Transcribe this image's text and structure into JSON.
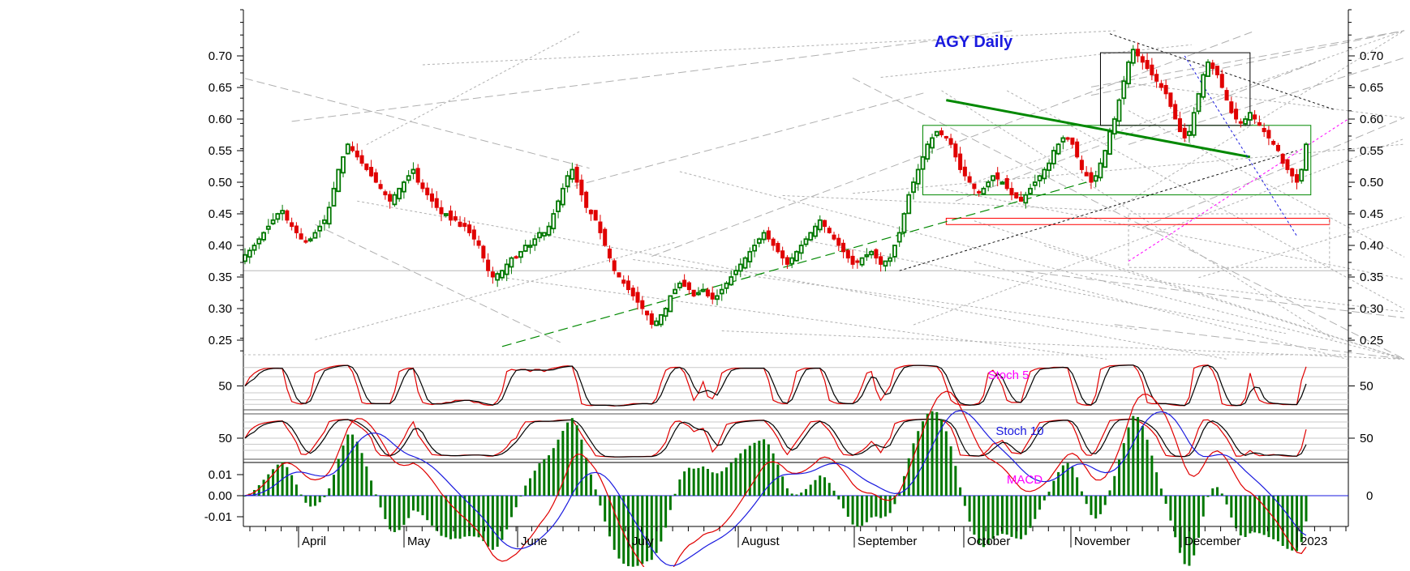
{
  "chart_data": {
    "type": "candlestick",
    "title": "AGY Daily",
    "colors": {
      "up": "#007700",
      "down": "#e00000",
      "title": "#1a1adf",
      "pink": "#ff00ff",
      "blue": "#1a1adf"
    },
    "price_axis": {
      "ticks": [
        0.25,
        0.3,
        0.35,
        0.4,
        0.45,
        0.5,
        0.55,
        0.6,
        0.65,
        0.7
      ],
      "tick_labels": [
        "0.25",
        "0.30",
        "0.35",
        "0.40",
        "0.45",
        "0.50",
        "0.55",
        "0.60",
        "0.65",
        "0.70"
      ],
      "ylim": [
        0.225,
        0.735
      ]
    },
    "months": [
      "April",
      "May",
      "June",
      "July",
      "August",
      "September",
      "October",
      "November",
      "December",
      "2023"
    ],
    "close": [
      0.385,
      0.392,
      0.4,
      0.41,
      0.42,
      0.43,
      0.44,
      0.45,
      0.455,
      0.44,
      0.43,
      0.42,
      0.41,
      0.405,
      0.41,
      0.42,
      0.43,
      0.44,
      0.46,
      0.49,
      0.52,
      0.54,
      0.56,
      0.55,
      0.54,
      0.53,
      0.52,
      0.51,
      0.5,
      0.49,
      0.48,
      0.47,
      0.48,
      0.49,
      0.5,
      0.51,
      0.52,
      0.5,
      0.49,
      0.48,
      0.47,
      0.46,
      0.45,
      0.45,
      0.44,
      0.44,
      0.43,
      0.43,
      0.42,
      0.41,
      0.4,
      0.38,
      0.36,
      0.35,
      0.355,
      0.36,
      0.37,
      0.38,
      0.38,
      0.39,
      0.4,
      0.4,
      0.41,
      0.42,
      0.42,
      0.43,
      0.45,
      0.47,
      0.49,
      0.51,
      0.52,
      0.5,
      0.48,
      0.46,
      0.45,
      0.44,
      0.42,
      0.4,
      0.38,
      0.36,
      0.35,
      0.34,
      0.33,
      0.32,
      0.31,
      0.3,
      0.29,
      0.275,
      0.28,
      0.29,
      0.3,
      0.32,
      0.33,
      0.34,
      0.335,
      0.33,
      0.32,
      0.325,
      0.33,
      0.32,
      0.315,
      0.32,
      0.33,
      0.34,
      0.35,
      0.36,
      0.37,
      0.38,
      0.39,
      0.4,
      0.41,
      0.42,
      0.41,
      0.4,
      0.39,
      0.38,
      0.37,
      0.38,
      0.39,
      0.4,
      0.41,
      0.42,
      0.43,
      0.44,
      0.43,
      0.42,
      0.41,
      0.4,
      0.39,
      0.38,
      0.37,
      0.375,
      0.38,
      0.385,
      0.39,
      0.38,
      0.37,
      0.375,
      0.38,
      0.4,
      0.42,
      0.45,
      0.48,
      0.5,
      0.52,
      0.54,
      0.56,
      0.57,
      0.58,
      0.575,
      0.57,
      0.56,
      0.54,
      0.52,
      0.51,
      0.5,
      0.49,
      0.485,
      0.49,
      0.5,
      0.51,
      0.505,
      0.5,
      0.49,
      0.48,
      0.475,
      0.47,
      0.48,
      0.49,
      0.5,
      0.51,
      0.52,
      0.53,
      0.55,
      0.56,
      0.57,
      0.57,
      0.56,
      0.54,
      0.52,
      0.51,
      0.5,
      0.51,
      0.53,
      0.55,
      0.58,
      0.6,
      0.63,
      0.66,
      0.69,
      0.71,
      0.7,
      0.69,
      0.68,
      0.67,
      0.66,
      0.65,
      0.64,
      0.62,
      0.6,
      0.58,
      0.57,
      0.58,
      0.61,
      0.64,
      0.67,
      0.69,
      0.68,
      0.67,
      0.65,
      0.63,
      0.61,
      0.6,
      0.595,
      0.6,
      0.61,
      0.6,
      0.59,
      0.58,
      0.57,
      0.56,
      0.55,
      0.53,
      0.52,
      0.51,
      0.5,
      0.52,
      0.56
    ],
    "trendlines": [
      {
        "name": "rising-support",
        "p1": [
          55,
          0.24
        ],
        "p2": [
          180,
          0.5
        ],
        "color": "#008800",
        "dash": true,
        "width": 1.2
      },
      {
        "name": "falling-resistance",
        "p1": [
          150,
          0.63
        ],
        "p2": [
          215,
          0.54
        ],
        "color": "#008800",
        "dash": false,
        "width": 3
      },
      {
        "name": "black-dotted-upper",
        "p1": [
          185,
          0.735
        ],
        "p2": [
          233,
          0.615
        ],
        "color": "#111111",
        "dash": true,
        "width": 1
      },
      {
        "name": "black-dotted-lower",
        "p1": [
          140,
          0.36
        ],
        "p2": [
          225,
          0.55
        ],
        "color": "#111111",
        "dash": true,
        "width": 1
      },
      {
        "name": "pink-rising",
        "p1": [
          189,
          0.375
        ],
        "p2": [
          236,
          0.6
        ],
        "color": "#ff00ff",
        "dash": true,
        "width": 1
      },
      {
        "name": "blue-falling",
        "p1": [
          201,
          0.7
        ],
        "p2": [
          225,
          0.415
        ],
        "color": "#1a1adf",
        "dash": true,
        "width": 1
      }
    ],
    "boxes": [
      {
        "name": "consolidation-box",
        "i0": 145,
        "i1": 228,
        "top": 0.59,
        "bottom": 0.48,
        "color": "#008800"
      },
      {
        "name": "top-box",
        "i0": 183,
        "i1": 215,
        "top": 0.705,
        "bottom": 0.59,
        "color": "#000000"
      },
      {
        "name": "support-zone",
        "i0": 150,
        "i1": 232,
        "top": 0.443,
        "bottom": 0.433,
        "color": "#ff0000"
      }
    ],
    "stoch5": {
      "label": "Stoch 5",
      "tick": "50",
      "color": "#ff00ff"
    },
    "stoch10": {
      "label": "Stoch 10",
      "tick": "50",
      "color": "#1a1adf"
    },
    "macd": {
      "label": "MACD",
      "ticks": [
        "0.01",
        "0.00",
        "-0.01"
      ],
      "right_tick": "0",
      "color": "#ff00ff"
    }
  }
}
